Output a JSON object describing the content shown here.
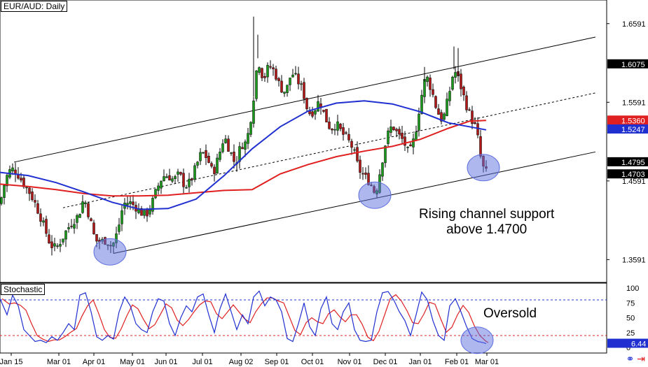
{
  "chart_data": [
    {
      "type": "candlestick",
      "title": "EUR/AUD: Daily",
      "y_range": [
        1.3301,
        1.6891
      ],
      "y_ticks": [
        "1.6591",
        "1.5591",
        "1.4591",
        "1.3591"
      ],
      "price_markers": [
        {
          "label": "1.6075",
          "value": 1.6075,
          "bg": "#000000",
          "fg": "#ffffff"
        },
        {
          "label": "1.5360",
          "value": 1.536,
          "bg": "#e02020",
          "fg": "#ffffff"
        },
        {
          "label": "1.5247",
          "value": 1.5247,
          "bg": "#2030d0",
          "fg": "#ffffff"
        },
        {
          "label": "1.4795",
          "value": 1.4795,
          "bg": "#000000",
          "fg": "#ffffff"
        },
        {
          "label": "1.4703",
          "value": 1.4703,
          "bg": "#000000",
          "fg": "#ffffff"
        }
      ],
      "x_labels": [
        "Jan 15",
        "Mar 01",
        "Apr 01",
        "May 01",
        "Jun 01",
        "Jul 01",
        "Aug 02",
        "Sep 01",
        "Oct 01",
        "Nov 01",
        "Dec 01",
        "Jan 01",
        "Feb 01",
        "Mar 01"
      ],
      "close_path": [
        [
          0,
          1.43
        ],
        [
          8,
          1.462
        ],
        [
          16,
          1.475
        ],
        [
          24,
          1.47
        ],
        [
          32,
          1.458
        ],
        [
          40,
          1.448
        ],
        [
          48,
          1.435
        ],
        [
          56,
          1.418
        ],
        [
          64,
          1.398
        ],
        [
          72,
          1.378
        ],
        [
          80,
          1.373
        ],
        [
          88,
          1.385
        ],
        [
          96,
          1.398
        ],
        [
          104,
          1.408
        ],
        [
          112,
          1.415
        ],
        [
          120,
          1.438
        ],
        [
          128,
          1.412
        ],
        [
          136,
          1.383
        ],
        [
          144,
          1.382
        ],
        [
          152,
          1.384
        ],
        [
          160,
          1.375
        ],
        [
          168,
          1.395
        ],
        [
          176,
          1.43
        ],
        [
          184,
          1.432
        ],
        [
          192,
          1.428
        ],
        [
          200,
          1.42
        ],
        [
          208,
          1.415
        ],
        [
          216,
          1.428
        ],
        [
          224,
          1.449
        ],
        [
          232,
          1.465
        ],
        [
          240,
          1.466
        ],
        [
          248,
          1.46
        ],
        [
          256,
          1.468
        ],
        [
          264,
          1.452
        ],
        [
          272,
          1.458
        ],
        [
          280,
          1.478
        ],
        [
          288,
          1.496
        ],
        [
          296,
          1.488
        ],
        [
          304,
          1.468
        ],
        [
          312,
          1.49
        ],
        [
          320,
          1.516
        ],
        [
          328,
          1.498
        ],
        [
          336,
          1.48
        ],
        [
          344,
          1.505
        ],
        [
          352,
          1.508
        ],
        [
          360,
          1.55
        ],
        [
          368,
          1.615
        ],
        [
          376,
          1.588
        ],
        [
          384,
          1.606
        ],
        [
          392,
          1.598
        ],
        [
          400,
          1.578
        ],
        [
          408,
          1.572
        ],
        [
          416,
          1.597
        ],
        [
          424,
          1.588
        ],
        [
          432,
          1.575
        ],
        [
          440,
          1.545
        ],
        [
          448,
          1.548
        ],
        [
          456,
          1.562
        ],
        [
          464,
          1.54
        ],
        [
          472,
          1.525
        ],
        [
          480,
          1.532
        ],
        [
          488,
          1.52
        ],
        [
          496,
          1.512
        ],
        [
          504,
          1.5
        ],
        [
          512,
          1.474
        ],
        [
          520,
          1.465
        ],
        [
          528,
          1.458
        ],
        [
          536,
          1.442
        ],
        [
          544,
          1.478
        ],
        [
          552,
          1.515
        ],
        [
          560,
          1.53
        ],
        [
          568,
          1.518
        ],
        [
          576,
          1.51
        ],
        [
          584,
          1.492
        ],
        [
          592,
          1.515
        ],
        [
          600,
          1.56
        ],
        [
          608,
          1.594
        ],
        [
          616,
          1.575
        ],
        [
          624,
          1.548
        ],
        [
          632,
          1.535
        ],
        [
          640,
          1.565
        ],
        [
          648,
          1.601
        ],
        [
          656,
          1.585
        ],
        [
          664,
          1.56
        ],
        [
          672,
          1.54
        ],
        [
          680,
          1.525
        ],
        [
          688,
          1.478
        ],
        [
          694,
          1.47
        ]
      ],
      "sma_blue": [
        [
          0,
          1.47
        ],
        [
          40,
          1.466
        ],
        [
          80,
          1.457
        ],
        [
          120,
          1.445
        ],
        [
          160,
          1.432
        ],
        [
          200,
          1.423
        ],
        [
          240,
          1.424
        ],
        [
          280,
          1.436
        ],
        [
          320,
          1.466
        ],
        [
          360,
          1.5
        ],
        [
          400,
          1.528
        ],
        [
          440,
          1.548
        ],
        [
          480,
          1.558
        ],
        [
          520,
          1.561
        ],
        [
          560,
          1.557
        ],
        [
          600,
          1.547
        ],
        [
          640,
          1.533
        ],
        [
          670,
          1.528
        ],
        [
          694,
          1.524
        ]
      ],
      "sma_red": [
        [
          0,
          1.455
        ],
        [
          40,
          1.452
        ],
        [
          80,
          1.448
        ],
        [
          120,
          1.443
        ],
        [
          160,
          1.44
        ],
        [
          200,
          1.44
        ],
        [
          240,
          1.441
        ],
        [
          280,
          1.444
        ],
        [
          320,
          1.447
        ],
        [
          360,
          1.448
        ],
        [
          400,
          1.468
        ],
        [
          440,
          1.48
        ],
        [
          480,
          1.49
        ],
        [
          520,
          1.497
        ],
        [
          560,
          1.503
        ],
        [
          600,
          1.512
        ],
        [
          640,
          1.526
        ],
        [
          670,
          1.535
        ],
        [
          694,
          1.536
        ]
      ],
      "channel": {
        "upper": [
          [
            20,
            1.483
          ],
          [
            850,
            1.642
          ]
        ],
        "middle": [
          [
            90,
            1.425
          ],
          [
            850,
            1.571
          ]
        ],
        "lower": [
          [
            162,
            1.367
          ],
          [
            850,
            1.496
          ]
        ]
      },
      "highlight_circles": [
        [
          157,
          1.369
        ],
        [
          535,
          1.441
        ],
        [
          690,
          1.476
        ]
      ],
      "annotations": [
        {
          "text_lines": [
            "Rising channel support",
            "above 1.4700"
          ]
        }
      ]
    },
    {
      "type": "line",
      "title": "Stochastic",
      "y_ticks": [
        "100",
        "75",
        "50",
        "25",
        "0"
      ],
      "levels": [
        80,
        20
      ],
      "current_value_label": "6.44",
      "k_path": [
        [
          0,
          82
        ],
        [
          10,
          55
        ],
        [
          18,
          88
        ],
        [
          26,
          70
        ],
        [
          34,
          30
        ],
        [
          42,
          20
        ],
        [
          50,
          10
        ],
        [
          58,
          12
        ],
        [
          66,
          8
        ],
        [
          74,
          18
        ],
        [
          82,
          12
        ],
        [
          90,
          25
        ],
        [
          98,
          40
        ],
        [
          106,
          30
        ],
        [
          114,
          88
        ],
        [
          122,
          92
        ],
        [
          130,
          60
        ],
        [
          138,
          18
        ],
        [
          146,
          12
        ],
        [
          154,
          20
        ],
        [
          162,
          14
        ],
        [
          170,
          60
        ],
        [
          178,
          85
        ],
        [
          186,
          70
        ],
        [
          194,
          40
        ],
        [
          202,
          30
        ],
        [
          210,
          25
        ],
        [
          218,
          60
        ],
        [
          226,
          82
        ],
        [
          234,
          78
        ],
        [
          242,
          40
        ],
        [
          250,
          20
        ],
        [
          258,
          50
        ],
        [
          266,
          70
        ],
        [
          274,
          60
        ],
        [
          282,
          85
        ],
        [
          290,
          90
        ],
        [
          298,
          55
        ],
        [
          306,
          25
        ],
        [
          314,
          65
        ],
        [
          322,
          90
        ],
        [
          330,
          60
        ],
        [
          338,
          30
        ],
        [
          346,
          55
        ],
        [
          354,
          40
        ],
        [
          362,
          85
        ],
        [
          370,
          95
        ],
        [
          378,
          70
        ],
        [
          386,
          85
        ],
        [
          394,
          80
        ],
        [
          402,
          60
        ],
        [
          410,
          15
        ],
        [
          418,
          10
        ],
        [
          426,
          40
        ],
        [
          434,
          75
        ],
        [
          442,
          35
        ],
        [
          450,
          20
        ],
        [
          458,
          65
        ],
        [
          466,
          85
        ],
        [
          474,
          40
        ],
        [
          482,
          30
        ],
        [
          490,
          60
        ],
        [
          498,
          75
        ],
        [
          506,
          30
        ],
        [
          514,
          12
        ],
        [
          522,
          10
        ],
        [
          530,
          12
        ],
        [
          538,
          60
        ],
        [
          546,
          92
        ],
        [
          554,
          94
        ],
        [
          562,
          80
        ],
        [
          570,
          60
        ],
        [
          578,
          45
        ],
        [
          586,
          20
        ],
        [
          594,
          55
        ],
        [
          602,
          93
        ],
        [
          610,
          80
        ],
        [
          618,
          45
        ],
        [
          626,
          20
        ],
        [
          634,
          12
        ],
        [
          642,
          70
        ],
        [
          650,
          82
        ],
        [
          658,
          60
        ],
        [
          666,
          35
        ],
        [
          674,
          15
        ],
        [
          682,
          10
        ],
        [
          690,
          8
        ],
        [
          694,
          6.44
        ]
      ],
      "highlight_circles": [
        [
          681,
          12
        ]
      ],
      "annotations": [
        {
          "text_lines": [
            "Oversold"
          ]
        }
      ]
    }
  ]
}
